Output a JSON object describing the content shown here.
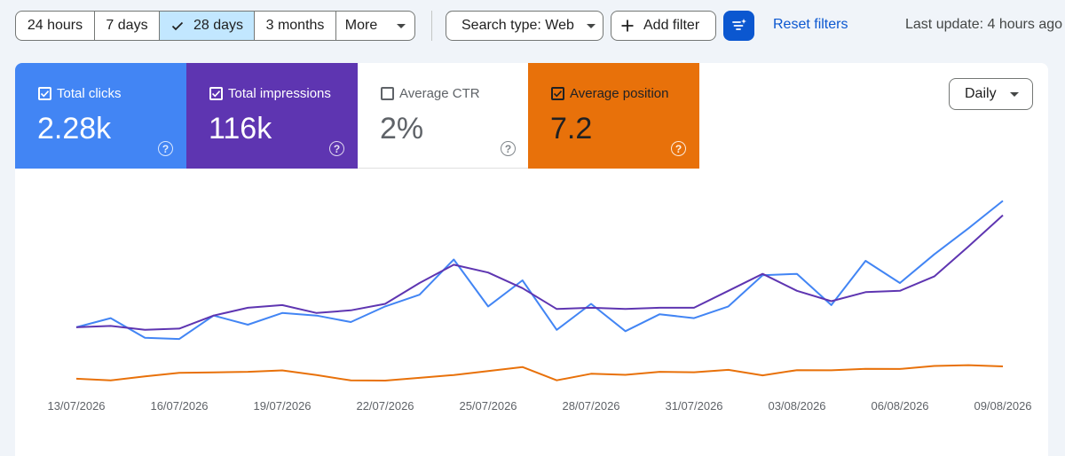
{
  "toolbar": {
    "date_ranges": [
      {
        "label": "24 hours",
        "selected": false
      },
      {
        "label": "7 days",
        "selected": false
      },
      {
        "label": "28 days",
        "selected": true
      },
      {
        "label": "3 months",
        "selected": false
      },
      {
        "label": "More",
        "selected": false,
        "dropdown": true
      }
    ],
    "search_type": "Search type: Web",
    "add_filter": "Add filter",
    "filter_icon": "filter-sparkle-icon",
    "reset_filters": "Reset filters",
    "last_update": "Last update: 4 hours ago"
  },
  "metrics": [
    {
      "label": "Total clicks",
      "value": "2.28k",
      "checked": true,
      "color": "#4285f4"
    },
    {
      "label": "Total impressions",
      "value": "116k",
      "checked": true,
      "color": "#5e35b1"
    },
    {
      "label": "Average CTR",
      "value": "2%",
      "checked": false,
      "color": "#ffffff"
    },
    {
      "label": "Average position",
      "value": "7.2",
      "checked": true,
      "color": "#e8710a"
    }
  ],
  "granularity": "Daily",
  "colors": {
    "clicks": "#4285f4",
    "impressions": "#5e35b1",
    "position": "#e8710a",
    "accent": "#0b57d0",
    "selected_range": "#c2e7ff"
  },
  "chart_data": {
    "type": "line",
    "x": [
      "13/07/2026",
      "14/07/2026",
      "15/07/2026",
      "16/07/2026",
      "17/07/2026",
      "18/07/2026",
      "19/07/2026",
      "20/07/2026",
      "21/07/2026",
      "22/07/2026",
      "23/07/2026",
      "24/07/2026",
      "25/07/2026",
      "26/07/2026",
      "27/07/2026",
      "28/07/2026",
      "29/07/2026",
      "30/07/2026",
      "31/07/2026",
      "01/08/2026",
      "02/08/2026",
      "03/08/2026",
      "04/08/2026",
      "05/08/2026",
      "06/08/2026",
      "07/08/2026",
      "08/08/2026",
      "09/08/2026"
    ],
    "xticks": [
      "13/07/2026",
      "16/07/2026",
      "19/07/2026",
      "22/07/2026",
      "25/07/2026",
      "28/07/2026",
      "31/07/2026",
      "03/08/2026",
      "06/08/2026",
      "09/08/2026"
    ],
    "series": [
      {
        "name": "Total clicks",
        "color": "#4285f4",
        "values": [
          45,
          52,
          37,
          36,
          54,
          47,
          56,
          54,
          49,
          61,
          70,
          97,
          61,
          81,
          43,
          63,
          42,
          55,
          52,
          61,
          85,
          86,
          62,
          96,
          79,
          101,
          121,
          142
        ]
      },
      {
        "name": "Total impressions",
        "color": "#5e35b1",
        "values": [
          45,
          46,
          43,
          44,
          54,
          60,
          62,
          56,
          58,
          63,
          79,
          93,
          87,
          75,
          59,
          60,
          59,
          60,
          60,
          73,
          86,
          73,
          65,
          72,
          73,
          84,
          107,
          131
        ]
      },
      {
        "name": "Average position",
        "color": "#e8710a",
        "values": [
          5.5,
          4.2,
          7.3,
          10.1,
          10.4,
          10.8,
          11.9,
          8.3,
          4.2,
          4.1,
          6.2,
          8.4,
          11.4,
          14.5,
          4.3,
          9.3,
          8.5,
          10.8,
          10.5,
          12.3,
          8.1,
          12.1,
          12,
          13.1,
          13,
          15.3,
          15.9,
          15
        ]
      }
    ],
    "ylim": [
      0,
      160
    ],
    "grid": false,
    "legend": "none"
  }
}
